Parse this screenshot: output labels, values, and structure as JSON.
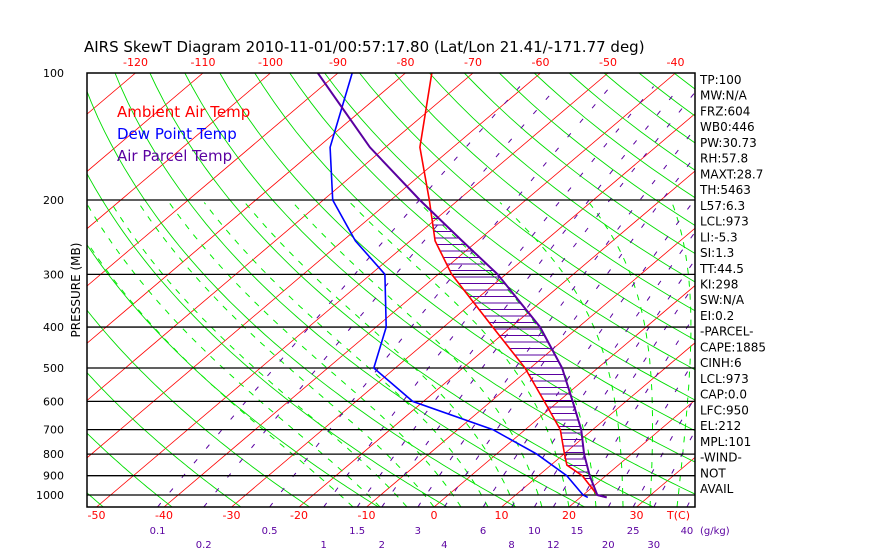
{
  "chart_data": {
    "type": "line",
    "subtype": "skew-t log-p",
    "title": "AIRS SkewT Diagram 2010-11-01/00:57:17.80 (Lat/Lon 21.41/-171.77 deg)",
    "ylabel": "PRESSURE (MB)",
    "xlabel": "T(C)",
    "mixing_ratio_unit": "(g/kg)",
    "ylim_mb": [
      1068,
      100
    ],
    "pressure_ticks": [
      100,
      200,
      300,
      400,
      500,
      600,
      700,
      800,
      900,
      1000
    ],
    "top_temp_ticks": [
      -120,
      -110,
      -100,
      -90,
      -80,
      -70,
      -60,
      -50,
      -40
    ],
    "bottom_temp_ticks": [
      -50,
      -40,
      -30,
      -20,
      -10,
      0,
      10,
      20,
      30
    ],
    "mixing_ratio_ticks": [
      "0.1",
      "0.2",
      "0.5",
      "1",
      "1.5",
      "2",
      "3",
      "4",
      "6",
      "8",
      "10",
      "12",
      "15",
      "20",
      "25",
      "30",
      "40"
    ],
    "legend": [
      {
        "label": "Ambient Air Temp",
        "color": "#ff0000"
      },
      {
        "label": "Dew Point Temp",
        "color": "#0000ff"
      },
      {
        "label": "Air Parcel Temp",
        "color": "#5a00a0"
      }
    ],
    "series": [
      {
        "name": "Ambient Air Temp",
        "color": "#ff0000",
        "pressure": [
          100,
          150,
          200,
          250,
          300,
          400,
          500,
          600,
          700,
          800,
          850,
          900,
          1000,
          1013
        ],
        "temperature": [
          -76.1,
          -64.9,
          -54.3,
          -46.3,
          -38.0,
          -22.7,
          -10.8,
          -2.1,
          5.2,
          10.1,
          12.4,
          16.5,
          22.1,
          23.9
        ]
      },
      {
        "name": "Dew Point Temp",
        "color": "#0000ff",
        "pressure": [
          100,
          150,
          200,
          250,
          300,
          400,
          500,
          600,
          700,
          800,
          900,
          1000,
          1013
        ],
        "temperature": [
          -87.9,
          -78.2,
          -68.6,
          -58.1,
          -47.9,
          -38.5,
          -33.2,
          -21.6,
          -4.8,
          6.0,
          14.2,
          20.0,
          21.1
        ]
      },
      {
        "name": "Air Parcel Temp",
        "color": "#5a00a0",
        "pressure": [
          100,
          150,
          200,
          250,
          300,
          400,
          500,
          600,
          700,
          800,
          900,
          1000,
          1013
        ],
        "temperature": [
          -93.0,
          -72.3,
          -55.7,
          -42.3,
          -31.2,
          -15.7,
          -5.3,
          2.1,
          8.3,
          13.0,
          17.6,
          22.1,
          23.9
        ]
      }
    ],
    "colors": {
      "isotherm": "#ff0000",
      "dry_adiabat": "#00dd00",
      "moist_adiabat": "#00ee00",
      "mixing_ratio": "#5a00a0",
      "hatch": "#5a00a0"
    }
  },
  "stats": [
    "TP:100",
    "MW:N/A",
    "FRZ:604",
    "WB0:446",
    "PW:30.73",
    "RH:57.8",
    "MAXT:28.7",
    "TH:5463",
    "L57:6.3",
    "LCL:973",
    "LI:-5.3",
    "SI:1.3",
    "TT:44.5",
    "KI:298",
    "SW:N/A",
    "EI:0.2",
    "-PARCEL-",
    "CAPE:1885",
    "CINH:6",
    "LCL:973",
    "CAP:0.0",
    "LFC:950",
    "EL:212",
    "MPL:101",
    "-WIND-",
    "NOT",
    "AVAIL"
  ]
}
